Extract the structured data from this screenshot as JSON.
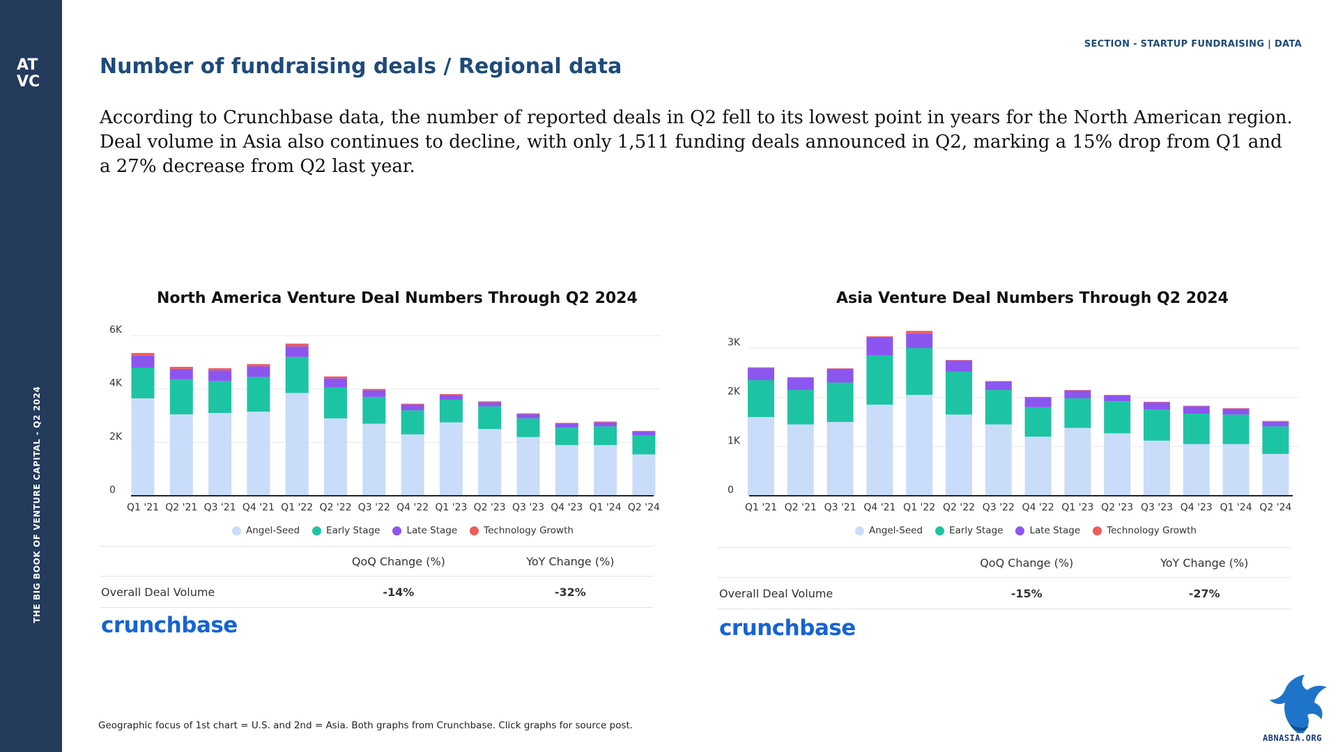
{
  "sidebar": {
    "logo_text": "ATVC",
    "vertical_text": "THE BIG BOOK OF VENTURE CAPITAL - Q2 2024"
  },
  "header": {
    "section_label": "SECTION - STARTUP FUNDRAISING | DATA",
    "title": "Number of fundraising deals / Regional data"
  },
  "intro": "According to Crunchbase data, the number of reported deals in Q2 fell to its lowest point in years for the North American region. Deal volume in Asia also continues to decline, with only 1,511 funding deals announced in Q2, marking a 15% drop from Q1 and a 27% decrease from Q2 last year.",
  "legend": [
    {
      "label": "Angel-Seed",
      "color": "#c9dcfa"
    },
    {
      "label": "Early Stage",
      "color": "#1dc4a3"
    },
    {
      "label": "Late Stage",
      "color": "#8b56f0"
    },
    {
      "label": "Technology Growth",
      "color": "#f05a5a"
    }
  ],
  "chart_data": [
    {
      "type": "bar",
      "stacked": true,
      "title": "North America Venture Deal Numbers Through Q2 2024",
      "categories": [
        "Q1 '21",
        "Q2 '21",
        "Q3 '21",
        "Q4 '21",
        "Q1 '22",
        "Q2 '22",
        "Q3 '22",
        "Q4 '22",
        "Q1 '23",
        "Q2 '23",
        "Q3 '23",
        "Q4 '23",
        "Q1 '24",
        "Q2 '24"
      ],
      "series": [
        {
          "name": "Angel-Seed",
          "values": [
            3650,
            3050,
            3100,
            3150,
            3850,
            2900,
            2700,
            2300,
            2750,
            2500,
            2200,
            1900,
            1900,
            1550
          ]
        },
        {
          "name": "Early Stage",
          "values": [
            1150,
            1300,
            1200,
            1300,
            1350,
            1150,
            1000,
            900,
            850,
            850,
            700,
            650,
            700,
            700
          ]
        },
        {
          "name": "Late Stage",
          "values": [
            450,
            400,
            400,
            400,
            400,
            350,
            250,
            220,
            180,
            150,
            160,
            150,
            150,
            150
          ]
        },
        {
          "name": "Technology Growth",
          "values": [
            100,
            80,
            80,
            80,
            100,
            70,
            50,
            30,
            30,
            40,
            30,
            30,
            30,
            30
          ]
        }
      ],
      "yticks": [
        {
          "v": 0,
          "label": "0"
        },
        {
          "v": 2000,
          "label": "2K"
        },
        {
          "v": 4000,
          "label": "4K"
        },
        {
          "v": 6000,
          "label": "6K"
        }
      ],
      "ylim": [
        0,
        6000
      ],
      "xlabel": "",
      "ylabel": "",
      "table": {
        "headers": [
          "QoQ Change (%)",
          "YoY Change (%)"
        ],
        "row_label": "Overall Deal Volume",
        "values": [
          "-14%",
          "-32%"
        ]
      },
      "source": "crunchbase"
    },
    {
      "type": "bar",
      "stacked": true,
      "title": "Asia Venture Deal Numbers Through Q2 2024",
      "categories": [
        "Q1 '21",
        "Q2 '21",
        "Q3 '21",
        "Q4 '21",
        "Q1 '22",
        "Q2 '22",
        "Q3 '22",
        "Q4 '22",
        "Q1 '23",
        "Q2 '23",
        "Q3 '23",
        "Q4 '23",
        "Q1 '24",
        "Q2 '24"
      ],
      "series": [
        {
          "name": "Angel-Seed",
          "values": [
            1600,
            1450,
            1500,
            1850,
            2050,
            1650,
            1450,
            1200,
            1380,
            1270,
            1120,
            1050,
            1050,
            850
          ]
        },
        {
          "name": "Early Stage",
          "values": [
            750,
            700,
            800,
            1000,
            950,
            870,
            700,
            600,
            600,
            650,
            630,
            620,
            600,
            560
          ]
        },
        {
          "name": "Late Stage",
          "values": [
            250,
            250,
            280,
            370,
            300,
            230,
            170,
            200,
            160,
            120,
            150,
            150,
            120,
            100
          ]
        },
        {
          "name": "Technology Growth",
          "values": [
            10,
            10,
            10,
            20,
            50,
            10,
            10,
            10,
            10,
            10,
            10,
            10,
            10,
            10
          ]
        }
      ],
      "yticks": [
        {
          "v": 0,
          "label": "0"
        },
        {
          "v": 1000,
          "label": "1K"
        },
        {
          "v": 2000,
          "label": "2K"
        },
        {
          "v": 3000,
          "label": "3K"
        }
      ],
      "ylim": [
        0,
        3000
      ],
      "xlabel": "",
      "ylabel": "",
      "table": {
        "headers": [
          "QoQ Change (%)",
          "YoY Change (%)"
        ],
        "row_label": "Overall Deal Volume",
        "values": [
          "-15%",
          "-27%"
        ]
      },
      "source": "crunchbase"
    }
  ],
  "footnote": "Geographic focus of 1st chart = U.S. and 2nd = Asia. Both graphs from Crunchbase. Click graphs for source post.",
  "watermark": "ABNASIA.ORG"
}
